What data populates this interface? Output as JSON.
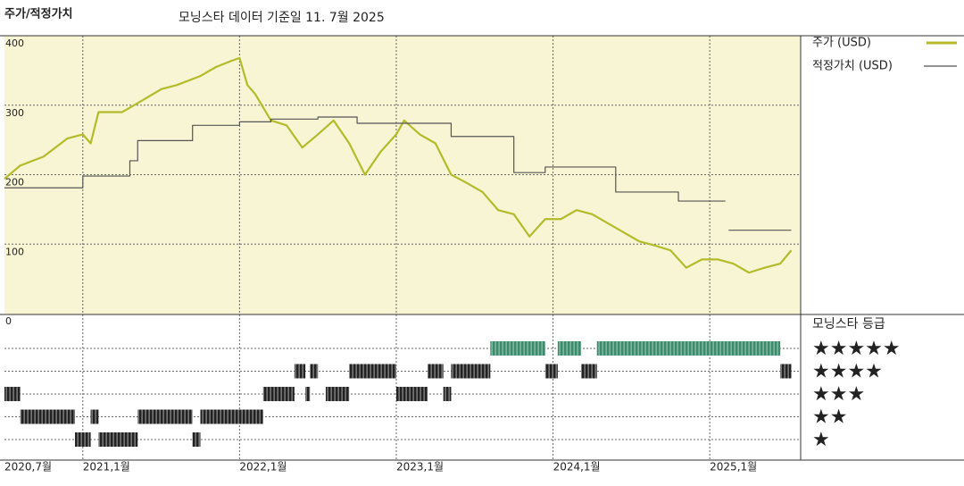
{
  "chart_data": {
    "type": "line",
    "title": "주가/적정가치",
    "subtitle": "모닝스타 데이터 기준일 11. 7월 2025",
    "xlim": [
      2020.5,
      2025.58
    ],
    "xticks": [
      {
        "value": 2020.5,
        "label": "2020,7월"
      },
      {
        "value": 2021.0,
        "label": "2021,1월"
      },
      {
        "value": 2022.0,
        "label": "2022,1월"
      },
      {
        "value": 2023.0,
        "label": "2023,1월"
      },
      {
        "value": 2024.0,
        "label": "2024,1월"
      },
      {
        "value": 2025.0,
        "label": "2025,1월"
      }
    ],
    "ylim": [
      0,
      400
    ],
    "yticks": [
      0,
      100,
      200,
      300,
      400
    ],
    "grid": true,
    "series": [
      {
        "name": "주가 (USD)",
        "color": "#b3bb2a",
        "x": [
          2020.5,
          2020.6,
          2020.75,
          2020.9,
          2021.0,
          2021.05,
          2021.1,
          2021.25,
          2021.35,
          2021.5,
          2021.6,
          2021.75,
          2021.85,
          2021.95,
          2022.0,
          2022.05,
          2022.1,
          2022.2,
          2022.3,
          2022.4,
          2022.5,
          2022.6,
          2022.7,
          2022.8,
          2022.9,
          2023.0,
          2023.05,
          2023.15,
          2023.25,
          2023.35,
          2023.45,
          2023.55,
          2023.65,
          2023.75,
          2023.85,
          2023.95,
          2024.05,
          2024.15,
          2024.25,
          2024.35,
          2024.45,
          2024.55,
          2024.65,
          2024.75,
          2024.85,
          2024.95,
          2025.05,
          2025.15,
          2025.25,
          2025.35,
          2025.45,
          2025.52
        ],
        "values": [
          194,
          213,
          226,
          252,
          258,
          245,
          290,
          290,
          303,
          323,
          329,
          342,
          355,
          364,
          368,
          329,
          316,
          278,
          271,
          239,
          258,
          278,
          245,
          200,
          233,
          258,
          278,
          258,
          245,
          200,
          188,
          175,
          149,
          143,
          111,
          136,
          136,
          149,
          143,
          130,
          117,
          104,
          98,
          91,
          66,
          78,
          78,
          72,
          59,
          66,
          72,
          91
        ]
      },
      {
        "name": "적정가치 (USD)",
        "color": "#555555",
        "step": true,
        "x": [
          2020.5,
          2021.0,
          2021.3,
          2021.35,
          2021.7,
          2022.0,
          2022.2,
          2022.5,
          2022.75,
          2023.35,
          2023.75,
          2023.95,
          2024.4,
          2024.8,
          2025.1,
          2025.12,
          2025.52
        ],
        "values": [
          181,
          198,
          220,
          249,
          271,
          276,
          280,
          283,
          274,
          255,
          203,
          211,
          175,
          162,
          null,
          120,
          120
        ]
      }
    ],
    "rating": {
      "title": "모닝스타 등급",
      "levels": [
        {
          "value": 5,
          "label": "★★★★★"
        },
        {
          "value": 4,
          "label": "★★★★"
        },
        {
          "value": 3,
          "label": "★★★"
        },
        {
          "value": 2,
          "label": "★★"
        },
        {
          "value": 1,
          "label": "★"
        }
      ],
      "top_color": "#3d8a6d",
      "color": "#222222",
      "periods": [
        {
          "x0": 2020.5,
          "x1": 2020.6,
          "value": 3
        },
        {
          "x0": 2020.6,
          "x1": 2020.95,
          "value": 2
        },
        {
          "x0": 2020.95,
          "x1": 2021.05,
          "value": 1
        },
        {
          "x0": 2021.05,
          "x1": 2021.1,
          "value": 2
        },
        {
          "x0": 2021.1,
          "x1": 2021.35,
          "value": 1
        },
        {
          "x0": 2021.35,
          "x1": 2021.7,
          "value": 2
        },
        {
          "x0": 2021.7,
          "x1": 2021.75,
          "value": 1
        },
        {
          "x0": 2021.75,
          "x1": 2022.15,
          "value": 2
        },
        {
          "x0": 2022.15,
          "x1": 2022.35,
          "value": 3
        },
        {
          "x0": 2022.35,
          "x1": 2022.42,
          "value": 4
        },
        {
          "x0": 2022.42,
          "x1": 2022.45,
          "value": 3
        },
        {
          "x0": 2022.45,
          "x1": 2022.5,
          "value": 4
        },
        {
          "x0": 2022.55,
          "x1": 2022.7,
          "value": 3
        },
        {
          "x0": 2022.7,
          "x1": 2023.0,
          "value": 4
        },
        {
          "x0": 2023.0,
          "x1": 2023.2,
          "value": 3
        },
        {
          "x0": 2023.2,
          "x1": 2023.3,
          "value": 4
        },
        {
          "x0": 2023.3,
          "x1": 2023.35,
          "value": 3
        },
        {
          "x0": 2023.35,
          "x1": 2023.6,
          "value": 4
        },
        {
          "x0": 2023.6,
          "x1": 2023.95,
          "value": 5
        },
        {
          "x0": 2023.95,
          "x1": 2024.03,
          "value": 4
        },
        {
          "x0": 2024.03,
          "x1": 2024.18,
          "value": 5
        },
        {
          "x0": 2024.18,
          "x1": 2024.28,
          "value": 4
        },
        {
          "x0": 2024.28,
          "x1": 2025.45,
          "value": 5
        },
        {
          "x0": 2025.45,
          "x1": 2025.52,
          "value": 4
        }
      ]
    }
  }
}
